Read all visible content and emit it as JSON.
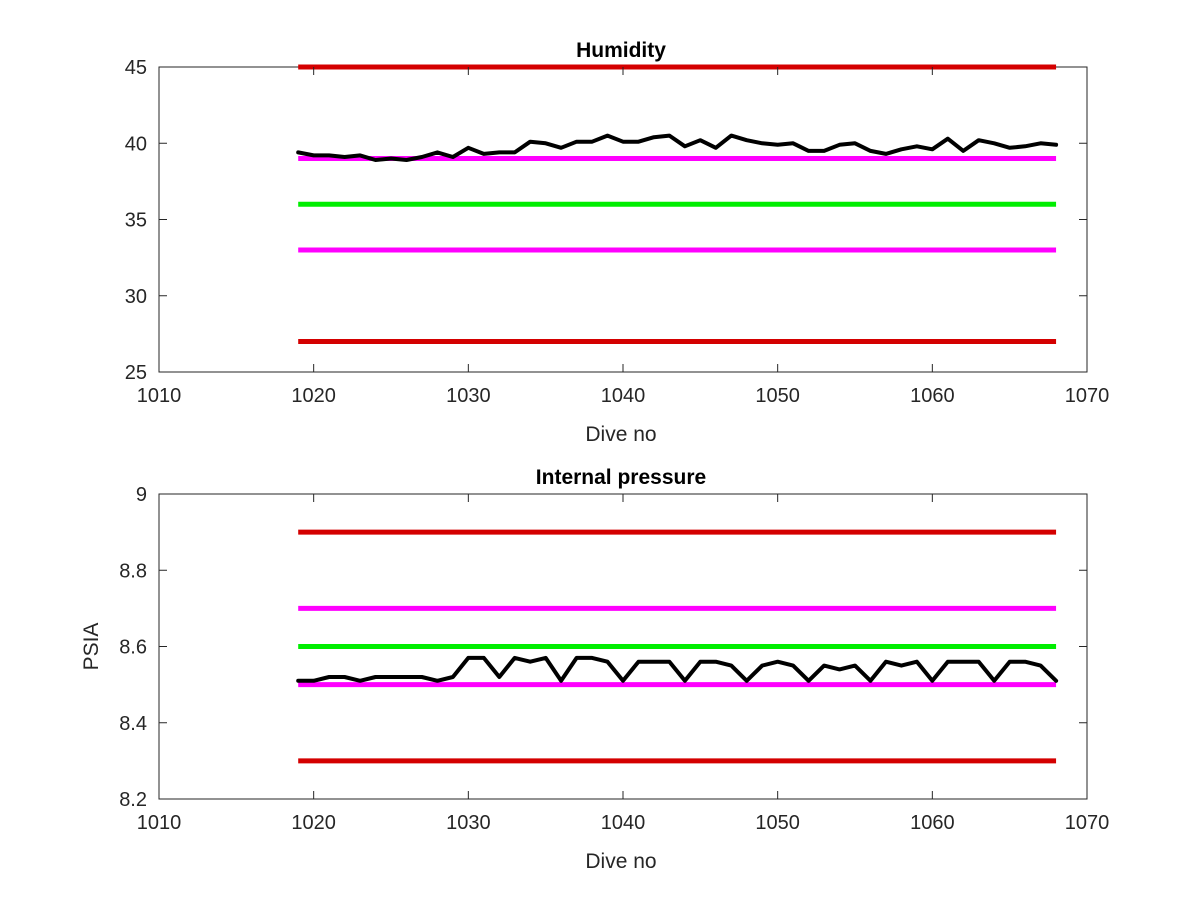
{
  "chart_data": [
    {
      "type": "line",
      "title": "Humidity",
      "xlabel": "Dive no",
      "ylabel": "",
      "xlim": [
        1010,
        1070
      ],
      "ylim": [
        25,
        45
      ],
      "xticks": [
        1010,
        1020,
        1030,
        1040,
        1050,
        1060,
        1070
      ],
      "yticks": [
        25,
        30,
        35,
        40,
        45
      ],
      "grid": false,
      "thresholds": [
        {
          "value": 45,
          "x_range": [
            1019,
            1068
          ],
          "color": "#d40000"
        },
        {
          "value": 39,
          "x_range": [
            1019,
            1068
          ],
          "color": "#ff00ff"
        },
        {
          "value": 36,
          "x_range": [
            1019,
            1068
          ],
          "color": "#00ee00"
        },
        {
          "value": 33,
          "x_range": [
            1019,
            1068
          ],
          "color": "#ff00ff"
        },
        {
          "value": 27,
          "x_range": [
            1019,
            1068
          ],
          "color": "#d40000"
        }
      ],
      "series": [
        {
          "color": "#000000",
          "x": [
            1019,
            1020,
            1021,
            1022,
            1023,
            1024,
            1025,
            1026,
            1027,
            1028,
            1029,
            1030,
            1031,
            1032,
            1033,
            1034,
            1035,
            1036,
            1037,
            1038,
            1039,
            1040,
            1041,
            1042,
            1043,
            1044,
            1045,
            1046,
            1047,
            1048,
            1049,
            1050,
            1051,
            1052,
            1053,
            1054,
            1055,
            1056,
            1057,
            1058,
            1059,
            1060,
            1061,
            1062,
            1063,
            1064,
            1065,
            1066,
            1067,
            1068
          ],
          "values": [
            39.4,
            39.2,
            39.2,
            39.1,
            39.2,
            38.9,
            39.0,
            38.9,
            39.1,
            39.4,
            39.1,
            39.7,
            39.3,
            39.4,
            39.4,
            40.1,
            40.0,
            39.7,
            40.1,
            40.1,
            40.5,
            40.1,
            40.1,
            40.4,
            40.5,
            39.8,
            40.2,
            39.7,
            40.5,
            40.2,
            40.0,
            39.9,
            40.0,
            39.5,
            39.5,
            39.9,
            40.0,
            39.5,
            39.3,
            39.6,
            39.8,
            39.6,
            40.3,
            39.5,
            40.2,
            40.0,
            39.7,
            39.8,
            40.0,
            39.9
          ]
        }
      ]
    },
    {
      "type": "line",
      "title": "Internal pressure",
      "xlabel": "Dive no",
      "ylabel": "PSIA",
      "xlim": [
        1010,
        1070
      ],
      "ylim": [
        8.2,
        9.0
      ],
      "xticks": [
        1010,
        1020,
        1030,
        1040,
        1050,
        1060,
        1070
      ],
      "yticks": [
        "8.2",
        "8.4",
        "8.6",
        "8.8",
        "9"
      ],
      "grid": false,
      "thresholds": [
        {
          "value": 8.9,
          "x_range": [
            1019,
            1068
          ],
          "color": "#d40000"
        },
        {
          "value": 8.7,
          "x_range": [
            1019,
            1068
          ],
          "color": "#ff00ff"
        },
        {
          "value": 8.6,
          "x_range": [
            1019,
            1068
          ],
          "color": "#00ee00"
        },
        {
          "value": 8.5,
          "x_range": [
            1019,
            1068
          ],
          "color": "#ff00ff"
        },
        {
          "value": 8.3,
          "x_range": [
            1019,
            1068
          ],
          "color": "#d40000"
        }
      ],
      "series": [
        {
          "color": "#000000",
          "x": [
            1019,
            1020,
            1021,
            1022,
            1023,
            1024,
            1025,
            1026,
            1027,
            1028,
            1029,
            1030,
            1031,
            1032,
            1033,
            1034,
            1035,
            1036,
            1037,
            1038,
            1039,
            1040,
            1041,
            1042,
            1043,
            1044,
            1045,
            1046,
            1047,
            1048,
            1049,
            1050,
            1051,
            1052,
            1053,
            1054,
            1055,
            1056,
            1057,
            1058,
            1059,
            1060,
            1061,
            1062,
            1063,
            1064,
            1065,
            1066,
            1067,
            1068
          ],
          "values": [
            8.51,
            8.51,
            8.52,
            8.52,
            8.51,
            8.52,
            8.52,
            8.52,
            8.52,
            8.51,
            8.52,
            8.57,
            8.57,
            8.52,
            8.57,
            8.56,
            8.57,
            8.51,
            8.57,
            8.57,
            8.56,
            8.51,
            8.56,
            8.56,
            8.56,
            8.51,
            8.56,
            8.56,
            8.55,
            8.51,
            8.55,
            8.56,
            8.55,
            8.51,
            8.55,
            8.54,
            8.55,
            8.51,
            8.56,
            8.55,
            8.56,
            8.51,
            8.56,
            8.56,
            8.56,
            8.51,
            8.56,
            8.56,
            8.55,
            8.51
          ]
        }
      ]
    }
  ]
}
